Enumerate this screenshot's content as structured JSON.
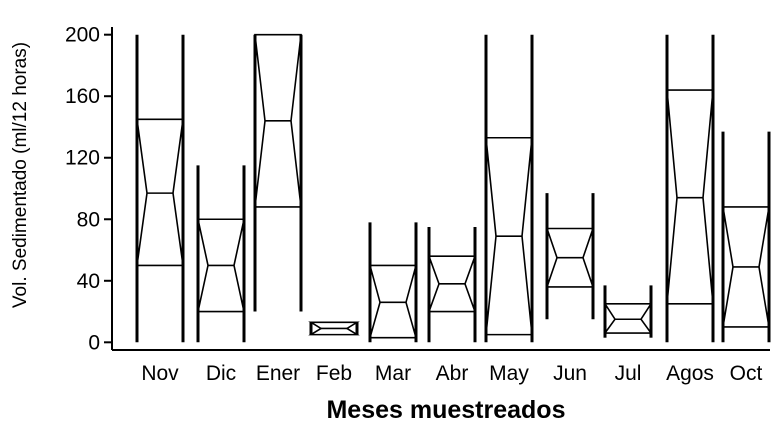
{
  "chart_data": {
    "type": "boxplot",
    "notched": true,
    "title": "",
    "xlabel": "Meses muestreados",
    "ylabel": "Vol. Sedimentado (ml/12 horas)",
    "ylim": [
      -5,
      205
    ],
    "yticks": [
      0,
      40,
      80,
      120,
      160,
      200
    ],
    "grid": false,
    "categories": [
      "Nov",
      "Dic",
      "Ener",
      "Feb",
      "Mar",
      "Abr",
      "May",
      "Jun",
      "Jul",
      "Agos",
      "Oct"
    ],
    "boxes": [
      {
        "category": "Nov",
        "q1": 50,
        "median": 97,
        "q3": 145,
        "notch_low": 50,
        "notch_high": 145,
        "whisker_low": 0,
        "whisker_high": 200
      },
      {
        "category": "Dic",
        "q1": 20,
        "median": 50,
        "q3": 80,
        "notch_low": 20,
        "notch_high": 80,
        "whisker_low": 0,
        "whisker_high": 115
      },
      {
        "category": "Ener",
        "q1": 88,
        "median": 144,
        "q3": 200,
        "notch_low": 88,
        "notch_high": 200,
        "whisker_low": 20,
        "whisker_high": 200
      },
      {
        "category": "Feb",
        "q1": 5,
        "median": 9,
        "q3": 13,
        "notch_low": 5,
        "notch_high": 13,
        "whisker_low": 5,
        "whisker_high": 13
      },
      {
        "category": "Mar",
        "q1": 3,
        "median": 26,
        "q3": 50,
        "notch_low": 3,
        "notch_high": 50,
        "whisker_low": 0,
        "whisker_high": 78
      },
      {
        "category": "Abr",
        "q1": 20,
        "median": 38,
        "q3": 56,
        "notch_low": 20,
        "notch_high": 56,
        "whisker_low": 0,
        "whisker_high": 75
      },
      {
        "category": "May",
        "q1": 5,
        "median": 69,
        "q3": 133,
        "notch_low": 5,
        "notch_high": 133,
        "whisker_low": 0,
        "whisker_high": 200
      },
      {
        "category": "Jun",
        "q1": 36,
        "median": 55,
        "q3": 74,
        "notch_low": 36,
        "notch_high": 74,
        "whisker_low": 15,
        "whisker_high": 97
      },
      {
        "category": "Jul",
        "q1": 6,
        "median": 15,
        "q3": 25,
        "notch_low": 6,
        "notch_high": 25,
        "whisker_low": 3,
        "whisker_high": 37
      },
      {
        "category": "Agos",
        "q1": 25,
        "median": 94,
        "q3": 164,
        "notch_low": 25,
        "notch_high": 164,
        "whisker_low": 0,
        "whisker_high": 200
      },
      {
        "category": "Oct",
        "q1": 10,
        "median": 49,
        "q3": 88,
        "notch_low": 10,
        "notch_high": 88,
        "whisker_low": 0,
        "whisker_high": 137
      }
    ]
  }
}
